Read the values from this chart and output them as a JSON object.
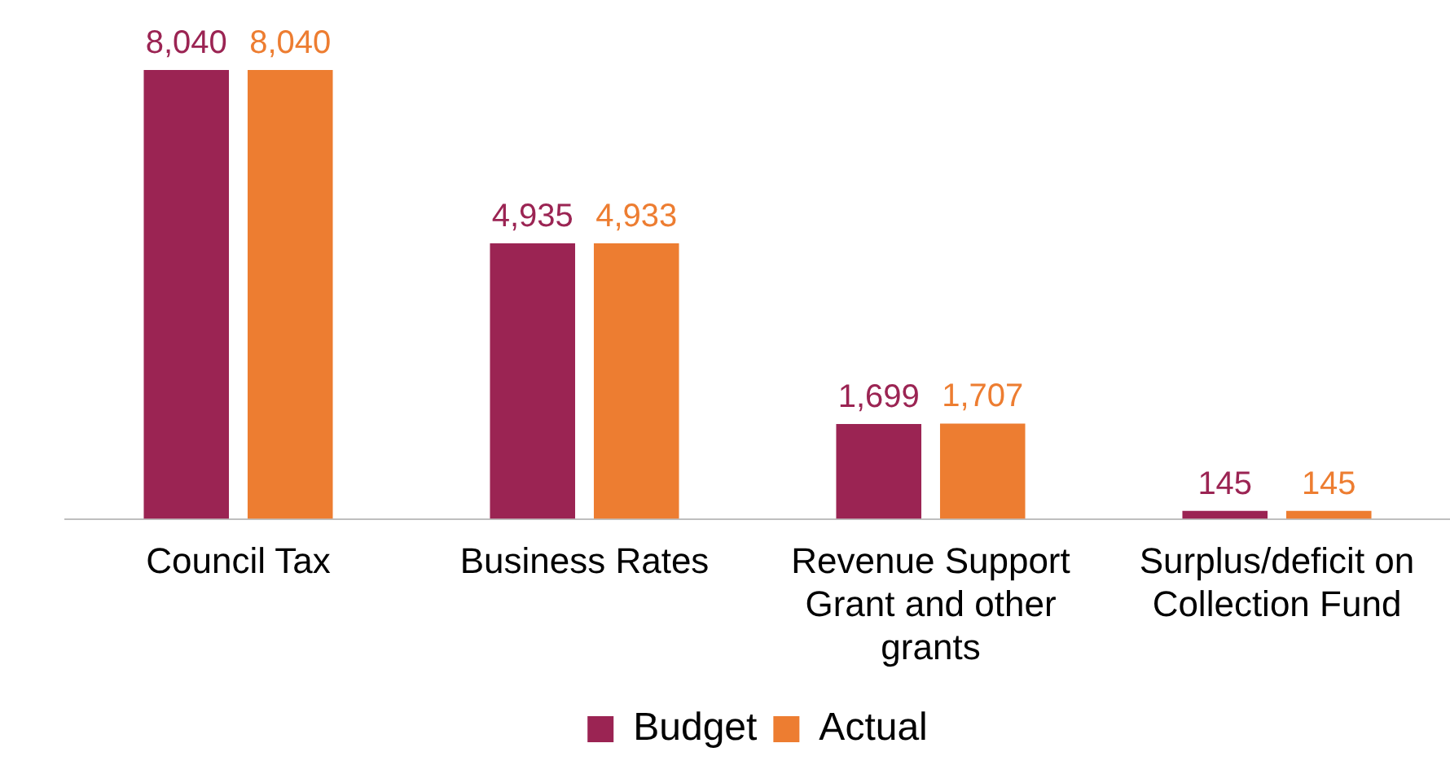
{
  "chart_data": {
    "type": "bar",
    "categories": [
      "Council Tax",
      "Business Rates",
      "Revenue Support Grant and other grants",
      "Surplus/deficit on Collection Fund"
    ],
    "series": [
      {
        "name": "Budget",
        "color": "#9b2453",
        "values": [
          8040,
          4935,
          1699,
          145
        ],
        "value_labels": [
          "8,040",
          "4,935",
          "1,699",
          "145"
        ]
      },
      {
        "name": "Actual",
        "color": "#ed7d31",
        "values": [
          8040,
          4933,
          1707,
          145
        ],
        "value_labels": [
          "8,040",
          "4,933",
          "1,707",
          "145"
        ]
      }
    ],
    "legend": "bottom",
    "grid": false
  }
}
